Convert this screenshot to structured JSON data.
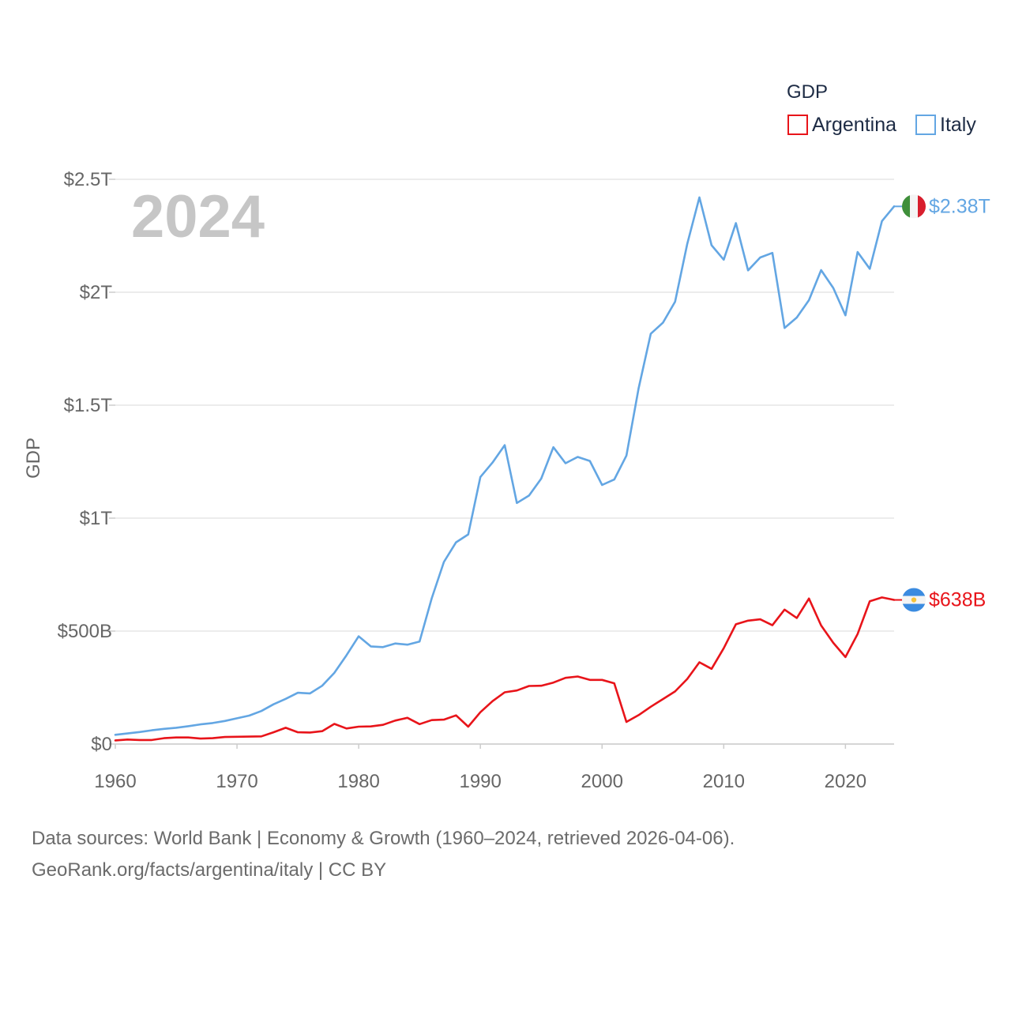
{
  "legend": {
    "title": "GDP",
    "items": [
      {
        "label": "Argentina",
        "color": "#e8141a"
      },
      {
        "label": "Italy",
        "color": "#63a6e3"
      }
    ]
  },
  "year_label": "2024",
  "chart_data": {
    "type": "line",
    "title": "",
    "xlabel": "",
    "ylabel": "GDP",
    "xlim": [
      1960,
      2024
    ],
    "ylim": [
      0,
      2.5
    ],
    "y_unit": "trillion USD",
    "x_ticks": [
      1960,
      1970,
      1980,
      1990,
      2000,
      2010,
      2020
    ],
    "y_ticks": [
      {
        "value": 0,
        "label": "$0"
      },
      {
        "value": 0.5,
        "label": "$500B"
      },
      {
        "value": 1,
        "label": "$1T"
      },
      {
        "value": 1.5,
        "label": "$1.5T"
      },
      {
        "value": 2,
        "label": "$2T"
      },
      {
        "value": 2.5,
        "label": "$2.5T"
      }
    ],
    "grid": true,
    "x": [
      1960,
      1961,
      1962,
      1963,
      1964,
      1965,
      1966,
      1967,
      1968,
      1969,
      1970,
      1971,
      1972,
      1973,
      1974,
      1975,
      1976,
      1977,
      1978,
      1979,
      1980,
      1981,
      1982,
      1983,
      1984,
      1985,
      1986,
      1987,
      1988,
      1989,
      1990,
      1991,
      1992,
      1993,
      1994,
      1995,
      1996,
      1997,
      1998,
      1999,
      2000,
      2001,
      2002,
      2003,
      2004,
      2005,
      2006,
      2007,
      2008,
      2009,
      2010,
      2011,
      2012,
      2013,
      2014,
      2015,
      2016,
      2017,
      2018,
      2019,
      2020,
      2021,
      2022,
      2023,
      2024
    ],
    "series": [
      {
        "name": "Argentina",
        "color": "#e8141a",
        "end_label": "$638B",
        "values": [
          0.016,
          0.02,
          0.018,
          0.018,
          0.026,
          0.029,
          0.029,
          0.024,
          0.026,
          0.031,
          0.032,
          0.033,
          0.034,
          0.052,
          0.072,
          0.052,
          0.051,
          0.057,
          0.089,
          0.069,
          0.077,
          0.078,
          0.085,
          0.104,
          0.116,
          0.088,
          0.106,
          0.108,
          0.127,
          0.077,
          0.141,
          0.19,
          0.229,
          0.237,
          0.257,
          0.258,
          0.272,
          0.293,
          0.299,
          0.284,
          0.284,
          0.269,
          0.098,
          0.128,
          0.165,
          0.199,
          0.233,
          0.288,
          0.362,
          0.333,
          0.424,
          0.53,
          0.546,
          0.552,
          0.526,
          0.595,
          0.558,
          0.644,
          0.525,
          0.448,
          0.385,
          0.487,
          0.632,
          0.649,
          0.638
        ]
      },
      {
        "name": "Italy",
        "color": "#63a6e3",
        "end_label": "$2.38T",
        "values": [
          0.041,
          0.047,
          0.053,
          0.061,
          0.067,
          0.072,
          0.079,
          0.087,
          0.093,
          0.102,
          0.114,
          0.126,
          0.146,
          0.176,
          0.2,
          0.227,
          0.224,
          0.258,
          0.315,
          0.393,
          0.477,
          0.432,
          0.429,
          0.445,
          0.44,
          0.454,
          0.645,
          0.806,
          0.893,
          0.928,
          1.182,
          1.246,
          1.323,
          1.067,
          1.1,
          1.175,
          1.314,
          1.243,
          1.271,
          1.253,
          1.147,
          1.171,
          1.277,
          1.574,
          1.816,
          1.865,
          1.958,
          2.214,
          2.42,
          2.208,
          2.144,
          2.306,
          2.097,
          2.154,
          2.174,
          1.842,
          1.888,
          1.965,
          2.098,
          2.019,
          1.898,
          2.178,
          2.104,
          2.315,
          2.38
        ]
      }
    ]
  },
  "footer": {
    "line1": "Data sources: World Bank | Economy & Growth (1960–2024, retrieved 2026-04-06).",
    "line2": "GeoRank.org/facts/argentina/italy | CC BY"
  }
}
